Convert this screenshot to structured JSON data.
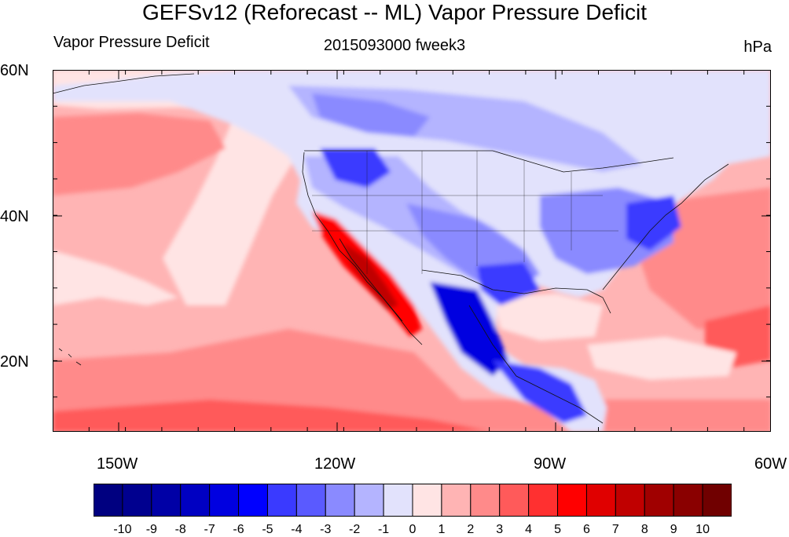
{
  "title": "GEFSv12 (Reforecast -- ML) Vapor Pressure Deficit",
  "left_subtitle": "Vapor Pressure Deficit",
  "center_subtitle": "2015093000 fweek3",
  "units": "hPa",
  "lat_labels": [
    "60N",
    "40N",
    "20N"
  ],
  "lon_labels": [
    "150W",
    "120W",
    "90W",
    "60W"
  ],
  "colorbar": {
    "labels": [
      "-10",
      "-9",
      "-8",
      "-7",
      "-6",
      "-5",
      "-4",
      "-3",
      "-2",
      "-1",
      "0",
      "1",
      "2",
      "3",
      "4",
      "5",
      "6",
      "7",
      "8",
      "9",
      "10"
    ],
    "colors": [
      "#000080",
      "#00008f",
      "#0000a6",
      "#0000c2",
      "#0000e0",
      "#0000ff",
      "#3a3aff",
      "#5a5aff",
      "#8a8aff",
      "#b4b4ff",
      "#e2e2fc",
      "#ffe4e4",
      "#ffb4b4",
      "#ff8a8a",
      "#ff5a5a",
      "#ff3030",
      "#ff0000",
      "#e00000",
      "#c00000",
      "#a00000",
      "#8a0000",
      "#700000"
    ]
  },
  "map_colors": {
    "ocean_mid": "#ffb4b4",
    "ocean_warm": "#ff8a8a",
    "ocean_hot": "#ff5a5a",
    "ocean_light": "#ffe4e4",
    "land_light": "#e2e2fc",
    "land_mid": "#b4b4ff",
    "land_blue": "#8a8aff",
    "land_dark": "#3a3aff",
    "land_deep": "#0000e0",
    "hot": "#ff0000",
    "hotter": "#c00000"
  }
}
